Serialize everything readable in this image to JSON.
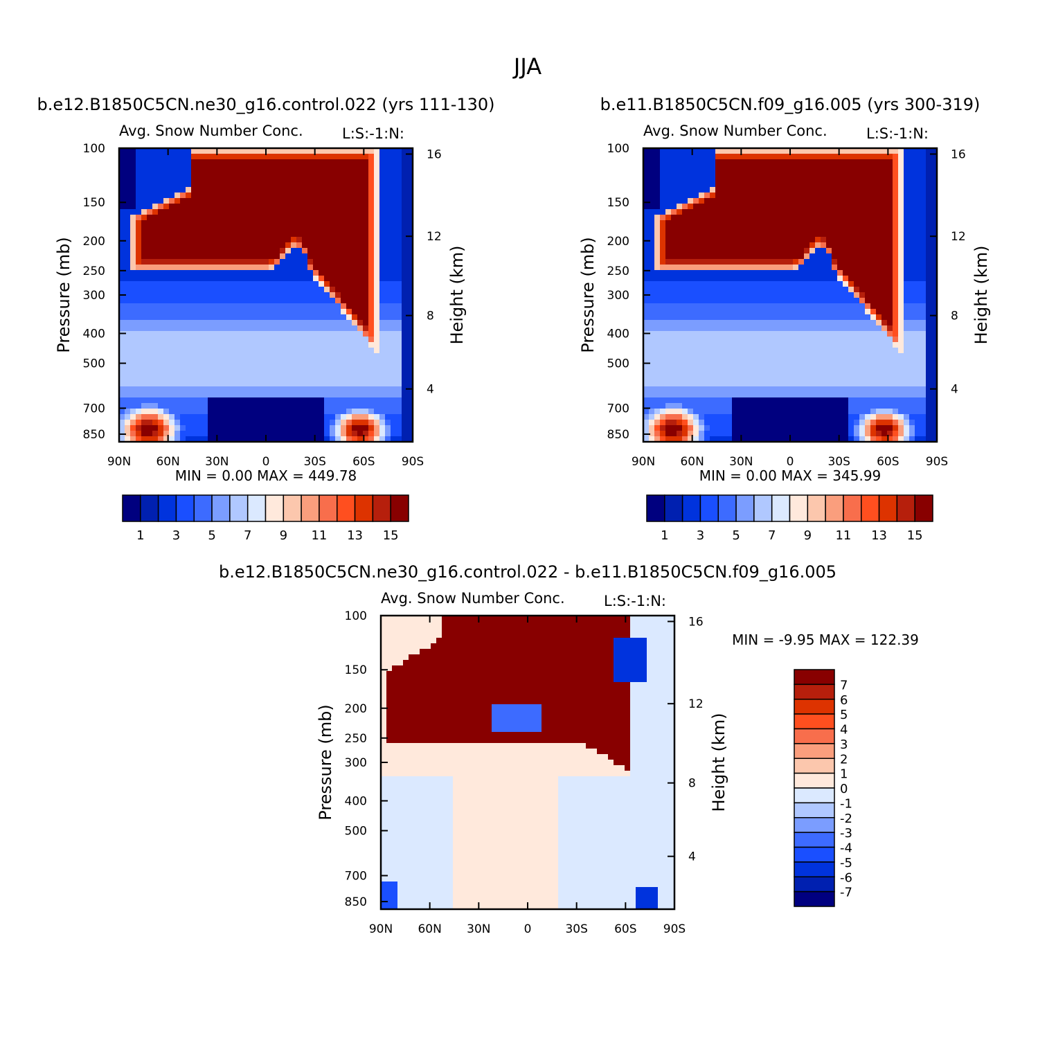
{
  "figure": {
    "title": "JJA"
  },
  "palettes": {
    "abs": [
      "#00007f",
      "#0020b0",
      "#0033dd",
      "#1a4fff",
      "#3d6bff",
      "#7b9dff",
      "#b0c8ff",
      "#dbe9ff",
      "#ffe9dc",
      "#fcc7ad",
      "#fa9e7d",
      "#f86e4c",
      "#ff4f1f",
      "#dd3300",
      "#b61f0c",
      "#880000"
    ],
    "diff": [
      "#000080",
      "#0020b0",
      "#0033dd",
      "#1a4fff",
      "#3d6bff",
      "#7b9dff",
      "#b0c8ff",
      "#dbe9ff",
      "#ffe9dc",
      "#fcc7ad",
      "#fa9e7d",
      "#f86e4c",
      "#ff4f1f",
      "#dd3300",
      "#b61f0c",
      "#880000"
    ]
  },
  "chart_data": [
    {
      "type": "heatmap",
      "panel_title": "b.e12.B1850C5CN.ne30_g16.control.022 (yrs 111-130)",
      "subtitle": "Avg. Snow Number Conc.",
      "units_label": "L:S:-1:N:",
      "ylabel": "Pressure (mb)",
      "y2label": "Height (km)",
      "x_ticks": [
        "90N",
        "60N",
        "30N",
        "0",
        "30S",
        "60S",
        "90S"
      ],
      "y_ticks": [
        "100",
        "150",
        "200",
        "250",
        "300",
        "400",
        "500",
        "700",
        "850"
      ],
      "y2_ticks": [
        "16",
        "12",
        "8",
        "4"
      ],
      "stats": {
        "min_label": "MIN =",
        "min": "0.00",
        "max_label": "MAX =",
        "max": "449.78"
      },
      "colorbar_labels": [
        "1",
        "3",
        "5",
        "7",
        "9",
        "11",
        "13",
        "15"
      ],
      "grid": false
    },
    {
      "type": "heatmap",
      "panel_title": "b.e11.B1850C5CN.f09_g16.005 (yrs 300-319)",
      "subtitle": "Avg. Snow Number Conc.",
      "units_label": "L:S:-1:N:",
      "ylabel": "Pressure (mb)",
      "y2label": "Height (km)",
      "x_ticks": [
        "90N",
        "60N",
        "30N",
        "0",
        "30S",
        "60S",
        "90S"
      ],
      "y_ticks": [
        "100",
        "150",
        "200",
        "250",
        "300",
        "400",
        "500",
        "700",
        "850"
      ],
      "y2_ticks": [
        "16",
        "12",
        "8",
        "4"
      ],
      "stats": {
        "min_label": "MIN =",
        "min": "0.00",
        "max_label": "MAX =",
        "max": "345.99"
      },
      "colorbar_labels": [
        "1",
        "3",
        "5",
        "7",
        "9",
        "11",
        "13",
        "15"
      ],
      "grid": false
    },
    {
      "type": "heatmap",
      "panel_title": "b.e12.B1850C5CN.ne30_g16.control.022 - b.e11.B1850C5CN.f09_g16.005",
      "subtitle": "Avg. Snow Number Conc.",
      "units_label": "L:S:-1:N:",
      "ylabel": "Pressure (mb)",
      "y2label": "Height (km)",
      "x_ticks": [
        "90N",
        "60N",
        "30N",
        "0",
        "30S",
        "60S",
        "90S"
      ],
      "y_ticks": [
        "100",
        "150",
        "200",
        "250",
        "300",
        "400",
        "500",
        "700",
        "850"
      ],
      "y2_ticks": [
        "16",
        "12",
        "8",
        "4"
      ],
      "stats": {
        "min_label": "MIN =",
        "min": "-9.95",
        "max_label": "MAX =",
        "max": "122.39"
      },
      "colorbar_labels": [
        "7",
        "6",
        "5",
        "4",
        "3",
        "2",
        "1",
        "0",
        "-1",
        "-2",
        "-3",
        "-4",
        "-5",
        "-6",
        "-7"
      ],
      "grid": false
    }
  ]
}
